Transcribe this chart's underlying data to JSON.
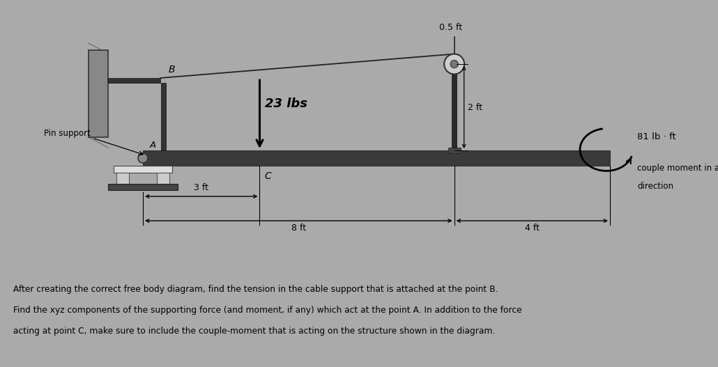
{
  "bg_color": "#aaaaaa",
  "text_color": "#000000",
  "title_text1": " After creating the correct free body diagram, find the tension in the cable support that is attached at the point B.",
  "title_text2": " Find the xyz components of the supporting force (and moment, if any) which act at the point A. In addition to the force",
  "title_text3": " acting at point C, make sure to include the couple-moment that is acting on the structure shown in the diagram.",
  "label_05ft": "0.5 ft",
  "label_23lbs": "23 lbs",
  "label_2ft": "2 ft",
  "label_81": "81 lb · ft",
  "label_couple": "couple moment in arrowed",
  "label_direction": "direction",
  "label_3ft": "3 ft",
  "label_8ft": "8 ft",
  "label_4ft": "4 ft",
  "label_B": "B",
  "label_A": "A",
  "label_C": "C",
  "label_pin": "Pin support"
}
